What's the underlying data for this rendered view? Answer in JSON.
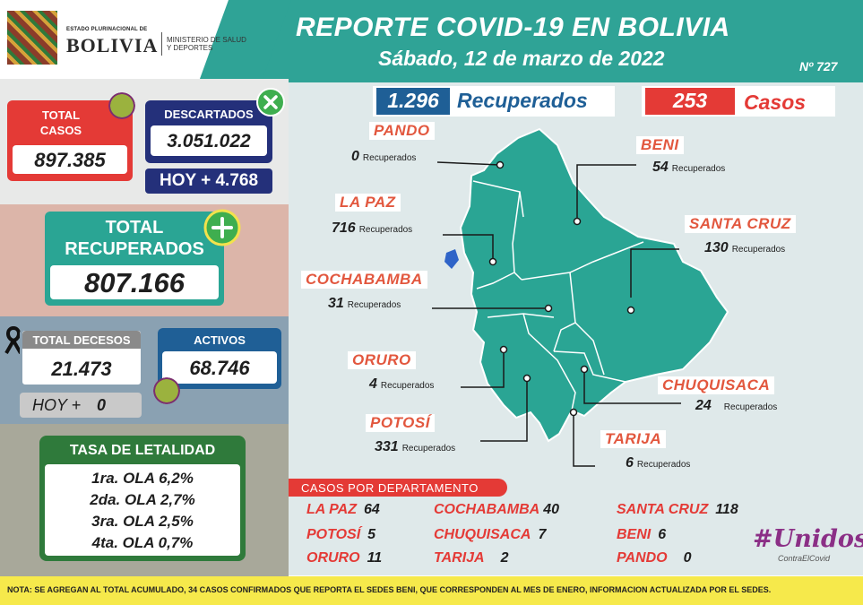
{
  "header": {
    "brand_top": "ESTADO PLURINACIONAL DE",
    "brand_main": "BOLIVIA",
    "ministry": "MINISTERIO DE SALUD Y DEPORTES",
    "title": "REPORTE COVID-19 EN BOLIVIA",
    "date": "Sábado, 12 de marzo de 2022",
    "report_no": "Nº 727"
  },
  "stats": {
    "total_casos_label": "TOTAL CASOS",
    "total_casos": "897.385",
    "descartados_label": "DESCARTADOS",
    "descartados": "3.051.022",
    "descartados_hoy": "HOY + 4.768",
    "total_recuperados_label": "TOTAL RECUPERADOS",
    "total_recuperados": "807.166",
    "total_decesos_label": "TOTAL DECESOS",
    "total_decesos": "21.473",
    "decesos_hoy_label": "HOY +",
    "decesos_hoy": "0",
    "activos_label": "ACTIVOS",
    "activos": "68.746"
  },
  "letalidad": {
    "title": "TASA DE LETALIDAD",
    "items": [
      "1ra. OLA 6,2%",
      "2da. OLA 2,7%",
      "3ra. OLA 2,5%",
      "4ta. OLA 0,7%"
    ]
  },
  "daily": {
    "recuperados_value": "1.296",
    "recuperados_label": "Recuperados",
    "casos_value": "253",
    "casos_label": "Casos"
  },
  "regions": [
    {
      "name": "PANDO",
      "value": "0",
      "unit": "Recuperados"
    },
    {
      "name": "BENI",
      "value": "54",
      "unit": "Recuperados"
    },
    {
      "name": "LA PAZ",
      "value": "716",
      "unit": "Recuperados"
    },
    {
      "name": "SANTA CRUZ",
      "value": "130",
      "unit": "Recuperados"
    },
    {
      "name": "COCHABAMBA",
      "value": "31",
      "unit": "Recuperados"
    },
    {
      "name": "ORURO",
      "value": "4",
      "unit": "Recuperados"
    },
    {
      "name": "CHUQUISACA",
      "value": "24",
      "unit": "Recuperados"
    },
    {
      "name": "POTOSÍ",
      "value": "331",
      "unit": "Recuperados"
    },
    {
      "name": "TARIJA",
      "value": "6",
      "unit": "Recuperados"
    }
  ],
  "cases_by_department": {
    "title": "CASOS POR DEPARTAMENTO",
    "rows": [
      {
        "name": "LA PAZ",
        "value": "64"
      },
      {
        "name": "COCHABAMBA",
        "value": "40"
      },
      {
        "name": "SANTA CRUZ",
        "value": "118"
      },
      {
        "name": "POTOSÍ",
        "value": "5"
      },
      {
        "name": "CHUQUISACA",
        "value": "7"
      },
      {
        "name": "BENI",
        "value": "6"
      },
      {
        "name": "ORURO",
        "value": "11"
      },
      {
        "name": "TARIJA",
        "value": "2"
      },
      {
        "name": "PANDO",
        "value": "0"
      }
    ]
  },
  "logo": {
    "line1": "#Unidos",
    "line2": "ContraElCovid"
  },
  "footer": "NOTA: SE AGREGAN AL TOTAL ACUMULADO, 34 CASOS CONFIRMADOS QUE REPORTA EL SEDES BENI, QUE CORRESPONDEN AL MES DE ENERO, INFORMACION ACTUALIZADA POR EL SEDES.",
  "colors": {
    "teal": "#2fa396",
    "red": "#e43a36",
    "navy": "#24307a",
    "orange": "#e2573e",
    "map": "#2aa594"
  }
}
